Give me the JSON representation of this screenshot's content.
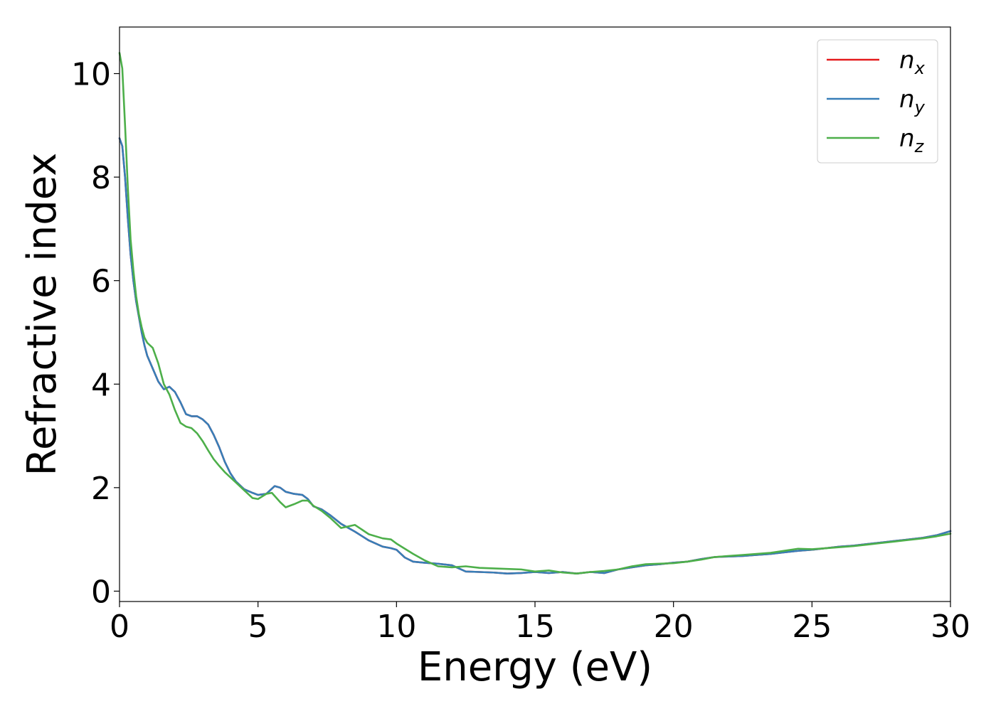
{
  "chart_data": {
    "type": "line",
    "xlabel": "Energy (eV)",
    "ylabel": "Refractive index",
    "xlim": [
      0,
      30
    ],
    "ylim": [
      -0.2,
      10.9
    ],
    "xticks": [
      0,
      5,
      10,
      15,
      20,
      25,
      30
    ],
    "yticks": [
      0,
      2,
      4,
      6,
      8,
      10
    ],
    "grid": false,
    "legend_position": "top-right",
    "series": [
      {
        "name": "n_x",
        "label_main": "n",
        "label_sub": "x",
        "color": "#e41a1c",
        "x": [
          0,
          0.1,
          0.2,
          0.3,
          0.4,
          0.5,
          0.6,
          0.7,
          0.8,
          0.9,
          1.0,
          1.2,
          1.4,
          1.6,
          1.8,
          2.0,
          2.2,
          2.4,
          2.6,
          2.8,
          3.0,
          3.2,
          3.4,
          3.6,
          3.8,
          4.0,
          4.2,
          4.5,
          4.8,
          5.0,
          5.3,
          5.6,
          5.8,
          6.0,
          6.3,
          6.6,
          6.8,
          7.0,
          7.3,
          7.6,
          8.0,
          8.5,
          9.0,
          9.5,
          9.8,
          10.0,
          10.3,
          10.6,
          11.0,
          11.5,
          12.0,
          12.5,
          13.0,
          13.5,
          14.0,
          14.5,
          15.0,
          15.5,
          16.0,
          16.5,
          17.0,
          17.5,
          18.0,
          18.5,
          19.0,
          19.5,
          20.0,
          20.5,
          21.0,
          21.5,
          22.0,
          22.5,
          23.0,
          23.5,
          24.0,
          24.5,
          25.0,
          25.5,
          26.0,
          26.5,
          27.0,
          27.5,
          28.0,
          28.5,
          29.0,
          29.5,
          30.0
        ],
        "y": [
          8.75,
          8.6,
          8.0,
          7.2,
          6.5,
          6.0,
          5.6,
          5.3,
          5.0,
          4.75,
          4.55,
          4.3,
          4.05,
          3.9,
          3.95,
          3.85,
          3.65,
          3.42,
          3.38,
          3.38,
          3.32,
          3.22,
          3.02,
          2.78,
          2.5,
          2.28,
          2.12,
          1.97,
          1.9,
          1.86,
          1.88,
          2.03,
          2.0,
          1.92,
          1.88,
          1.86,
          1.78,
          1.64,
          1.58,
          1.47,
          1.3,
          1.15,
          0.98,
          0.86,
          0.83,
          0.8,
          0.65,
          0.57,
          0.55,
          0.53,
          0.5,
          0.38,
          0.37,
          0.36,
          0.34,
          0.35,
          0.37,
          0.35,
          0.37,
          0.34,
          0.37,
          0.35,
          0.42,
          0.46,
          0.5,
          0.52,
          0.55,
          0.57,
          0.62,
          0.66,
          0.67,
          0.68,
          0.7,
          0.72,
          0.75,
          0.78,
          0.8,
          0.83,
          0.86,
          0.88,
          0.91,
          0.94,
          0.97,
          1.0,
          1.03,
          1.08,
          1.16
        ]
      },
      {
        "name": "n_y",
        "label_main": "n",
        "label_sub": "y",
        "color": "#377eb8",
        "x": [
          0,
          0.1,
          0.2,
          0.3,
          0.4,
          0.5,
          0.6,
          0.7,
          0.8,
          0.9,
          1.0,
          1.2,
          1.4,
          1.6,
          1.8,
          2.0,
          2.2,
          2.4,
          2.6,
          2.8,
          3.0,
          3.2,
          3.4,
          3.6,
          3.8,
          4.0,
          4.2,
          4.5,
          4.8,
          5.0,
          5.3,
          5.6,
          5.8,
          6.0,
          6.3,
          6.6,
          6.8,
          7.0,
          7.3,
          7.6,
          8.0,
          8.5,
          9.0,
          9.5,
          9.8,
          10.0,
          10.3,
          10.6,
          11.0,
          11.5,
          12.0,
          12.5,
          13.0,
          13.5,
          14.0,
          14.5,
          15.0,
          15.5,
          16.0,
          16.5,
          17.0,
          17.5,
          18.0,
          18.5,
          19.0,
          19.5,
          20.0,
          20.5,
          21.0,
          21.5,
          22.0,
          22.5,
          23.0,
          23.5,
          24.0,
          24.5,
          25.0,
          25.5,
          26.0,
          26.5,
          27.0,
          27.5,
          28.0,
          28.5,
          29.0,
          29.5,
          30.0
        ],
        "y": [
          8.75,
          8.6,
          8.0,
          7.2,
          6.5,
          6.0,
          5.6,
          5.3,
          5.0,
          4.75,
          4.55,
          4.3,
          4.05,
          3.9,
          3.95,
          3.85,
          3.65,
          3.42,
          3.38,
          3.38,
          3.32,
          3.22,
          3.02,
          2.78,
          2.5,
          2.28,
          2.12,
          1.97,
          1.9,
          1.86,
          1.88,
          2.03,
          2.0,
          1.92,
          1.88,
          1.86,
          1.78,
          1.64,
          1.58,
          1.47,
          1.3,
          1.15,
          0.98,
          0.86,
          0.83,
          0.8,
          0.65,
          0.57,
          0.55,
          0.53,
          0.5,
          0.38,
          0.37,
          0.36,
          0.34,
          0.35,
          0.37,
          0.35,
          0.37,
          0.34,
          0.37,
          0.35,
          0.42,
          0.46,
          0.5,
          0.52,
          0.55,
          0.57,
          0.62,
          0.66,
          0.67,
          0.68,
          0.7,
          0.72,
          0.75,
          0.78,
          0.8,
          0.83,
          0.86,
          0.88,
          0.91,
          0.94,
          0.97,
          1.0,
          1.03,
          1.08,
          1.16
        ]
      },
      {
        "name": "n_z",
        "label_main": "n",
        "label_sub": "z",
        "color": "#4daf4a",
        "x": [
          0,
          0.1,
          0.2,
          0.3,
          0.4,
          0.5,
          0.6,
          0.7,
          0.8,
          0.9,
          1.0,
          1.2,
          1.4,
          1.6,
          1.8,
          2.0,
          2.2,
          2.4,
          2.6,
          2.8,
          3.0,
          3.2,
          3.4,
          3.6,
          3.8,
          4.0,
          4.2,
          4.5,
          4.8,
          5.0,
          5.3,
          5.5,
          5.8,
          6.0,
          6.3,
          6.6,
          6.8,
          7.0,
          7.3,
          7.6,
          8.0,
          8.5,
          9.0,
          9.5,
          9.8,
          10.0,
          10.3,
          10.6,
          11.0,
          11.5,
          12.0,
          12.5,
          13.0,
          13.5,
          14.0,
          14.5,
          15.0,
          15.5,
          16.0,
          16.5,
          17.0,
          17.5,
          18.0,
          18.5,
          19.0,
          19.5,
          20.0,
          20.5,
          21.0,
          21.5,
          22.0,
          22.5,
          23.0,
          23.5,
          24.0,
          24.5,
          25.0,
          25.5,
          26.0,
          26.5,
          27.0,
          27.5,
          28.0,
          28.5,
          29.0,
          29.5,
          30.0
        ],
        "y": [
          10.4,
          10.1,
          9.0,
          7.8,
          6.8,
          6.2,
          5.7,
          5.35,
          5.1,
          4.9,
          4.8,
          4.7,
          4.4,
          4.0,
          3.8,
          3.5,
          3.25,
          3.18,
          3.15,
          3.05,
          2.9,
          2.72,
          2.55,
          2.42,
          2.3,
          2.2,
          2.1,
          1.95,
          1.8,
          1.78,
          1.88,
          1.9,
          1.72,
          1.62,
          1.68,
          1.75,
          1.75,
          1.65,
          1.55,
          1.42,
          1.22,
          1.28,
          1.1,
          1.02,
          1.0,
          0.92,
          0.82,
          0.72,
          0.6,
          0.48,
          0.46,
          0.48,
          0.45,
          0.44,
          0.43,
          0.42,
          0.38,
          0.4,
          0.36,
          0.34,
          0.37,
          0.39,
          0.42,
          0.48,
          0.52,
          0.53,
          0.54,
          0.57,
          0.61,
          0.66,
          0.68,
          0.7,
          0.72,
          0.74,
          0.78,
          0.82,
          0.81,
          0.83,
          0.85,
          0.87,
          0.9,
          0.93,
          0.96,
          0.99,
          1.02,
          1.06,
          1.11
        ]
      }
    ]
  }
}
